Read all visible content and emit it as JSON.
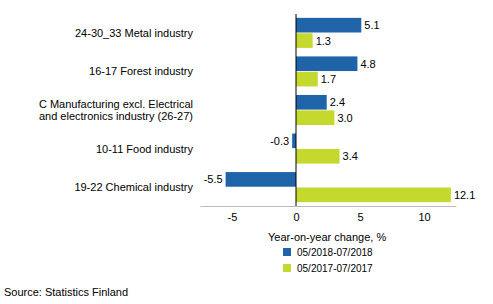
{
  "chart_data": {
    "type": "bar",
    "orientation": "horizontal",
    "data_labels": true,
    "grid": false,
    "legend": "bottom",
    "categories": [
      "24-30_33 Metal industry",
      "16-17 Forest industry",
      "C Manufacturing excl. Electrical\nand electronics industry (26-27)",
      "10-11 Food industry",
      "19-22 Chemical industry"
    ],
    "series": [
      {
        "name": "05/2018-07/2018",
        "color": "#1f63a8",
        "values": [
          5.1,
          4.8,
          2.4,
          -0.3,
          -5.5
        ],
        "value_labels": [
          "5.1",
          "4.8",
          "2.4",
          "-0.3",
          "-5.5"
        ]
      },
      {
        "name": "05/2017-07/2017",
        "color": "#c5d82e",
        "values": [
          1.3,
          1.7,
          3.0,
          3.4,
          12.1
        ],
        "value_labels": [
          "1.3",
          "1.7",
          "3.0",
          "3.4",
          "12.1"
        ]
      }
    ],
    "x_label": "Year-on-year change, %",
    "xlim": [
      -7.5,
      12.5
    ],
    "xticks": [
      -5,
      0,
      5,
      10
    ],
    "source": "Source: Statistics Finland"
  }
}
